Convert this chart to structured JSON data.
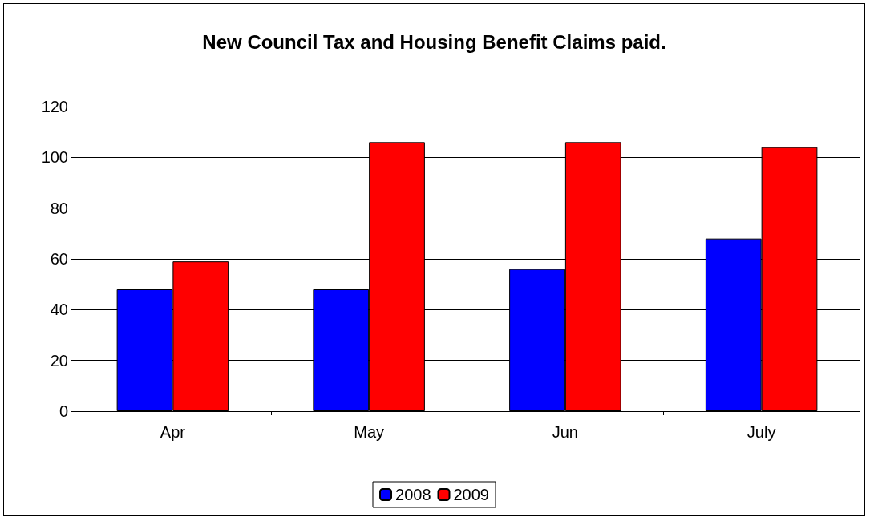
{
  "chart_data": {
    "type": "bar",
    "title": "New Council Tax and Housing Benefit Claims paid.",
    "categories": [
      "Apr",
      "May",
      "Jun",
      "July"
    ],
    "series": [
      {
        "name": "2008",
        "color": "#0000ff",
        "values": [
          48,
          48,
          56,
          68
        ]
      },
      {
        "name": "2009",
        "color": "#ff0000",
        "values": [
          59,
          106,
          106,
          104
        ]
      }
    ],
    "ylim": [
      0,
      120
    ],
    "yticks": [
      0,
      20,
      40,
      60,
      80,
      100,
      120
    ],
    "grid": "y",
    "legend": "bottom"
  }
}
